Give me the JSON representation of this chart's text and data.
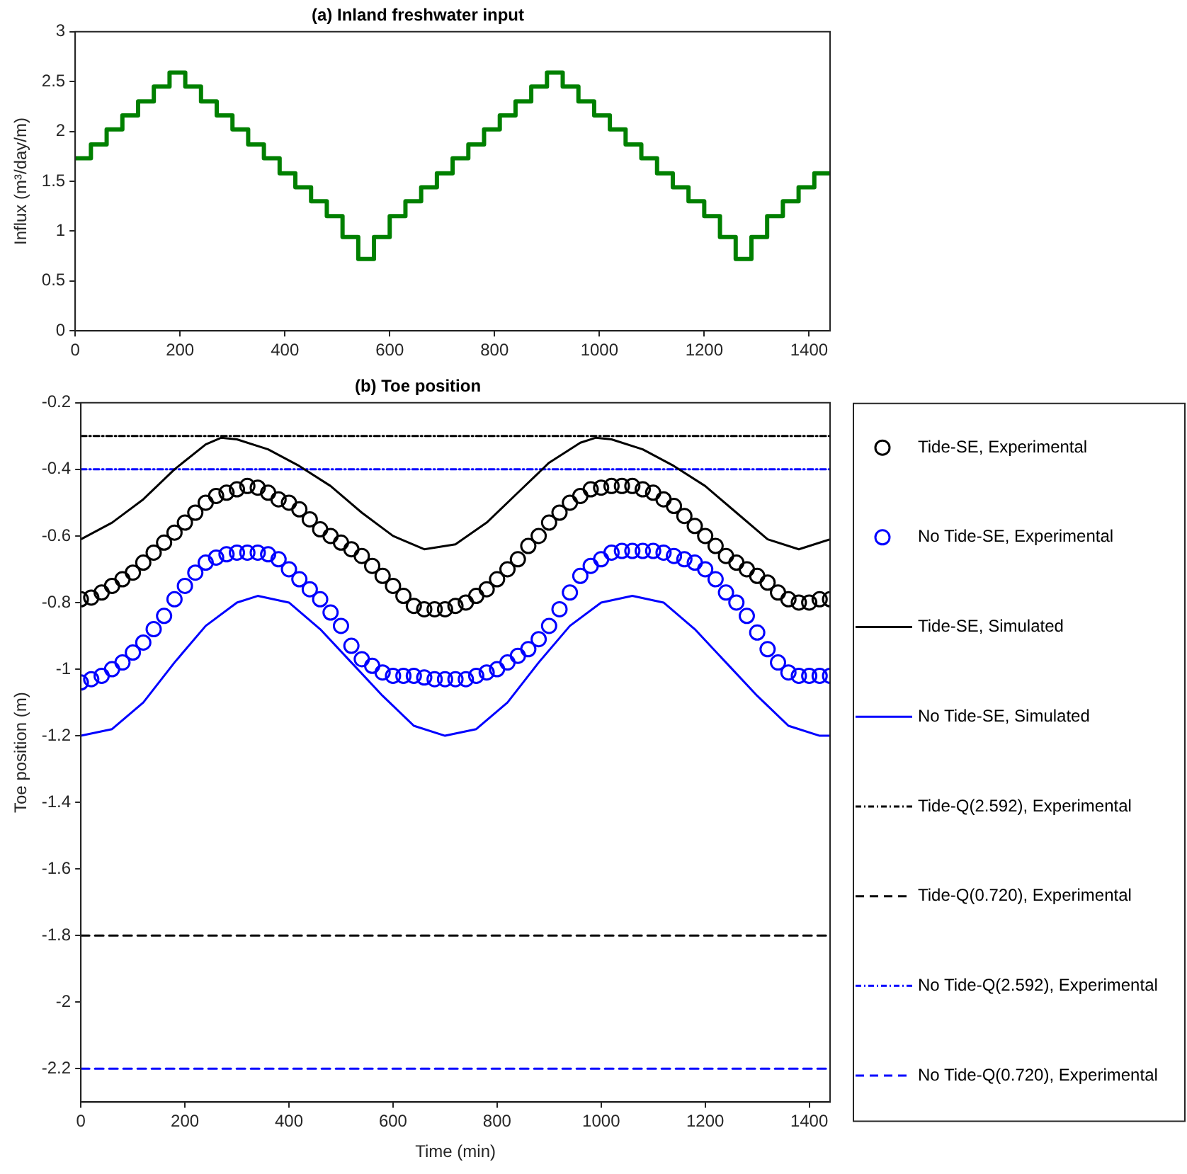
{
  "chart_data": [
    {
      "type": "step",
      "title": "(a) Inland freshwater input",
      "ylabel": "Influx (m³/day/m)",
      "xlim": [
        0,
        1440
      ],
      "xticks": [
        0,
        200,
        400,
        600,
        800,
        1000,
        1200,
        1400
      ],
      "ylim": [
        0,
        3
      ],
      "yticks": [
        0,
        0.5,
        1,
        1.5,
        2,
        2.5,
        3
      ],
      "grid": false,
      "legend": false,
      "color": "#008000",
      "x": [
        0,
        30,
        60,
        90,
        120,
        150,
        180,
        210,
        240,
        270,
        300,
        330,
        360,
        390,
        420,
        450,
        480,
        510,
        540,
        570,
        600,
        630,
        660,
        690,
        720,
        750,
        780,
        810,
        840,
        870,
        900,
        930,
        960,
        990,
        1020,
        1050,
        1080,
        1110,
        1140,
        1170,
        1200,
        1230,
        1260,
        1290,
        1320,
        1350,
        1380,
        1410,
        1440
      ],
      "values": [
        1.73,
        1.87,
        2.02,
        2.16,
        2.3,
        2.45,
        2.59,
        2.45,
        2.3,
        2.16,
        2.02,
        1.87,
        1.73,
        1.58,
        1.44,
        1.3,
        1.15,
        0.94,
        0.72,
        0.94,
        1.15,
        1.3,
        1.44,
        1.58,
        1.73,
        1.87,
        2.02,
        2.16,
        2.3,
        2.45,
        2.59,
        2.45,
        2.3,
        2.16,
        2.02,
        1.87,
        1.73,
        1.58,
        1.44,
        1.3,
        1.15,
        0.94,
        0.72,
        0.94,
        1.15,
        1.3,
        1.44,
        1.58,
        1.58
      ]
    },
    {
      "type": "line",
      "title": "(b) Toe position",
      "xlabel": "Time (min)",
      "ylabel": "Toe position (m)",
      "xlim": [
        0,
        1440
      ],
      "xticks": [
        0,
        200,
        400,
        600,
        800,
        1000,
        1200,
        1400
      ],
      "ylim": [
        -2.3,
        -0.2
      ],
      "yticks": [
        -2.2,
        -2,
        -1.8,
        -1.6,
        -1.4,
        -1.2,
        -1,
        -0.8,
        -0.6,
        -0.4,
        -0.2
      ],
      "grid": false,
      "legend": "right",
      "x": [
        0,
        20,
        40,
        60,
        80,
        100,
        120,
        140,
        160,
        180,
        200,
        220,
        240,
        260,
        280,
        300,
        320,
        340,
        360,
        380,
        400,
        420,
        440,
        460,
        480,
        500,
        520,
        540,
        560,
        580,
        600,
        620,
        640,
        660,
        680,
        700,
        720,
        740,
        760,
        780,
        800,
        820,
        840,
        860,
        880,
        900,
        920,
        940,
        960,
        980,
        1000,
        1020,
        1040,
        1060,
        1080,
        1100,
        1120,
        1140,
        1160,
        1180,
        1200,
        1220,
        1240,
        1260,
        1280,
        1300,
        1320,
        1340,
        1360,
        1380,
        1400,
        1420,
        1440
      ],
      "series": [
        {
          "name": "Tide-SE, Experimental",
          "type": "scatter",
          "marker": "circle",
          "color": "#000000",
          "values": [
            -0.79,
            -0.785,
            -0.77,
            -0.75,
            -0.73,
            -0.71,
            -0.68,
            -0.65,
            -0.62,
            -0.59,
            -0.56,
            -0.53,
            -0.5,
            -0.48,
            -0.47,
            -0.46,
            -0.45,
            -0.455,
            -0.47,
            -0.49,
            -0.5,
            -0.52,
            -0.55,
            -0.58,
            -0.6,
            -0.62,
            -0.64,
            -0.66,
            -0.69,
            -0.72,
            -0.75,
            -0.78,
            -0.81,
            -0.82,
            -0.82,
            -0.82,
            -0.81,
            -0.8,
            -0.78,
            -0.76,
            -0.73,
            -0.7,
            -0.67,
            -0.63,
            -0.6,
            -0.56,
            -0.53,
            -0.5,
            -0.48,
            -0.46,
            -0.455,
            -0.45,
            -0.45,
            -0.45,
            -0.46,
            -0.47,
            -0.49,
            -0.51,
            -0.54,
            -0.57,
            -0.6,
            -0.63,
            -0.66,
            -0.68,
            -0.7,
            -0.72,
            -0.74,
            -0.77,
            -0.79,
            -0.8,
            -0.8,
            -0.79,
            -0.79
          ]
        },
        {
          "name": "No Tide-SE, Experimental",
          "type": "scatter",
          "marker": "circle",
          "color": "#0000ff",
          "values": [
            -1.04,
            -1.03,
            -1.02,
            -1.0,
            -0.98,
            -0.95,
            -0.92,
            -0.88,
            -0.84,
            -0.79,
            -0.75,
            -0.71,
            -0.68,
            -0.665,
            -0.655,
            -0.65,
            -0.65,
            -0.65,
            -0.655,
            -0.67,
            -0.7,
            -0.73,
            -0.76,
            -0.79,
            -0.83,
            -0.87,
            -0.93,
            -0.97,
            -0.99,
            -1.01,
            -1.02,
            -1.02,
            -1.02,
            -1.025,
            -1.03,
            -1.03,
            -1.03,
            -1.03,
            -1.02,
            -1.01,
            -1.0,
            -0.98,
            -0.96,
            -0.94,
            -0.91,
            -0.87,
            -0.82,
            -0.77,
            -0.72,
            -0.69,
            -0.67,
            -0.65,
            -0.645,
            -0.645,
            -0.645,
            -0.645,
            -0.65,
            -0.66,
            -0.67,
            -0.68,
            -0.7,
            -0.73,
            -0.77,
            -0.8,
            -0.84,
            -0.89,
            -0.94,
            -0.98,
            -1.01,
            -1.02,
            -1.02,
            -1.02,
            -1.02
          ]
        },
        {
          "name": "Tide-SE, Simulated",
          "type": "line",
          "marker": "none",
          "line_style": "solid",
          "color": "#000000",
          "x": [
            0,
            60,
            120,
            180,
            240,
            270,
            300,
            360,
            420,
            480,
            540,
            600,
            660,
            720,
            780,
            840,
            900,
            960,
            990,
            1020,
            1080,
            1140,
            1200,
            1260,
            1320,
            1380,
            1440
          ],
          "values": [
            -0.61,
            -0.56,
            -0.49,
            -0.4,
            -0.325,
            -0.305,
            -0.31,
            -0.34,
            -0.39,
            -0.45,
            -0.53,
            -0.6,
            -0.64,
            -0.625,
            -0.56,
            -0.47,
            -0.38,
            -0.32,
            -0.305,
            -0.31,
            -0.34,
            -0.39,
            -0.45,
            -0.53,
            -0.61,
            -0.64,
            -0.61
          ]
        },
        {
          "name": "No Tide-SE, Simulated",
          "type": "line",
          "marker": "none",
          "line_style": "solid",
          "color": "#0000ff",
          "x": [
            0,
            60,
            120,
            180,
            240,
            300,
            340,
            400,
            460,
            520,
            580,
            640,
            700,
            760,
            820,
            880,
            940,
            1000,
            1060,
            1120,
            1180,
            1240,
            1300,
            1360,
            1420,
            1440
          ],
          "values": [
            -1.2,
            -1.18,
            -1.1,
            -0.98,
            -0.87,
            -0.8,
            -0.78,
            -0.8,
            -0.88,
            -0.98,
            -1.08,
            -1.17,
            -1.2,
            -1.18,
            -1.1,
            -0.98,
            -0.87,
            -0.8,
            -0.78,
            -0.8,
            -0.88,
            -0.98,
            -1.08,
            -1.17,
            -1.2,
            -1.2
          ]
        },
        {
          "name": "Tide-Q(2.592), Experimental",
          "type": "line",
          "marker": "none",
          "line_style": "dotted",
          "color": "#000000",
          "x": [
            0,
            1440
          ],
          "values": [
            -0.3,
            -0.3
          ]
        },
        {
          "name": "Tide-Q(0.720), Experimental",
          "type": "line",
          "marker": "none",
          "line_style": "dashed",
          "color": "#000000",
          "x": [
            0,
            1440
          ],
          "values": [
            -1.8,
            -1.8
          ]
        },
        {
          "name": "No Tide-Q(2.592), Experimental",
          "type": "line",
          "marker": "none",
          "line_style": "dotted",
          "color": "#0000ff",
          "x": [
            0,
            1440
          ],
          "values": [
            -0.4,
            -0.4
          ]
        },
        {
          "name": "No Tide-Q(0.720), Experimental",
          "type": "line",
          "marker": "none",
          "line_style": "dashed",
          "color": "#0000ff",
          "x": [
            0,
            1440
          ],
          "values": [
            -2.2,
            -2.2
          ]
        }
      ]
    }
  ]
}
